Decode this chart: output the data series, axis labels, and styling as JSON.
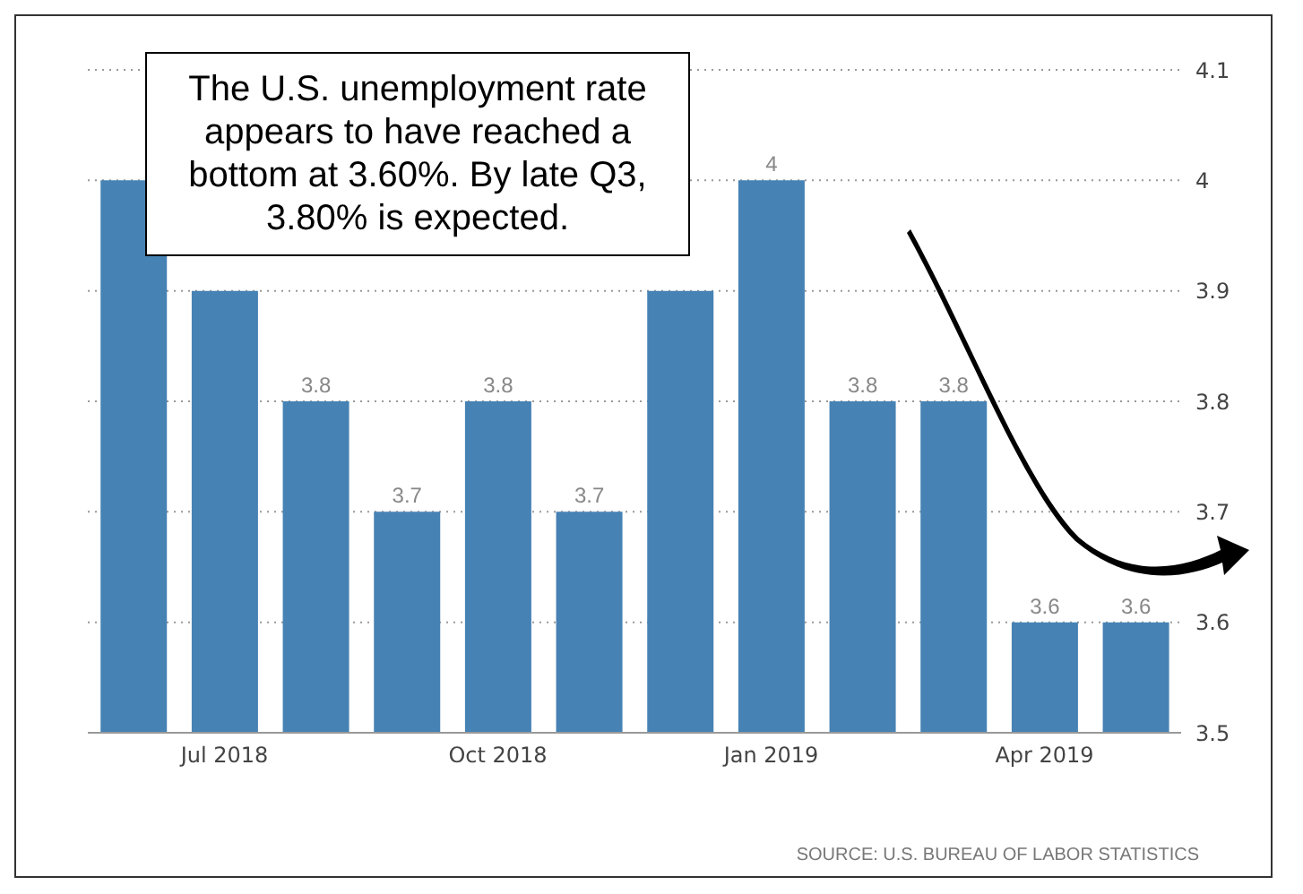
{
  "chart_data": {
    "type": "bar",
    "categories": [
      null,
      "Jul 2018",
      null,
      null,
      "Oct 2018",
      null,
      null,
      "Jan 2019",
      null,
      null,
      "Apr 2019",
      null
    ],
    "values": [
      4.0,
      3.9,
      3.8,
      3.7,
      3.8,
      3.7,
      3.9,
      4.0,
      3.8,
      3.8,
      3.6,
      3.6
    ],
    "value_labels": [
      null,
      null,
      "3.8",
      "3.7",
      "3.8",
      "3.7",
      null,
      "4",
      "3.8",
      "3.8",
      "3.6",
      "3.6"
    ],
    "color": "#4682b4",
    "ylim": [
      3.5,
      4.1
    ],
    "yticks": [
      3.5,
      3.6,
      3.7,
      3.8,
      3.9,
      4,
      4.1
    ],
    "grid": "y",
    "legend": false,
    "annotations": [
      "The U.S. unemployment rate appears to have reached a bottom at 3.60%. By late Q3, 3.80% is expected.",
      "SOURCE: U.S. BUREAU OF LABOR STATISTICS"
    ]
  }
}
